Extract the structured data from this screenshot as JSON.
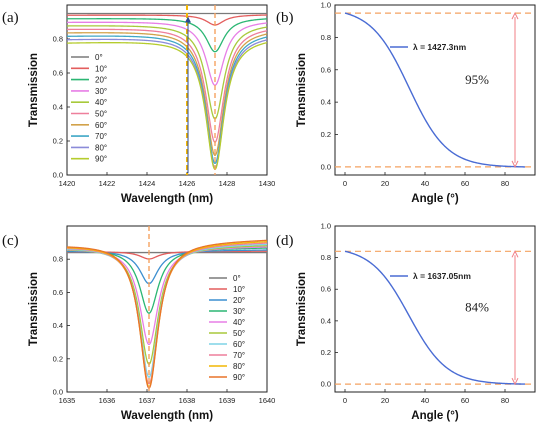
{
  "chart_data": [
    {
      "type": "line",
      "panel_label": "(a)",
      "xlabel": "Wavelength (nm)",
      "ylabel": "Transmission",
      "xlim": [
        1420,
        1430
      ],
      "ylim": [
        0,
        1.0
      ],
      "xticks": [
        1420,
        1422,
        1424,
        1426,
        1428,
        1430
      ],
      "yticks": [
        0.0,
        0.2,
        0.4,
        0.6,
        0.8
      ],
      "resonance": 1427.4,
      "width": 0.55,
      "legend_position": "left",
      "markers": [
        {
          "x": 1426.0,
          "style": "dashed",
          "color": "#f2b705"
        },
        {
          "x": 1427.4,
          "style": "dashed",
          "color": "#f4a261"
        }
      ],
      "series": [
        {
          "name": "0°",
          "color": "#7a7a7a",
          "base": 0.95,
          "min": 0.95
        },
        {
          "name": "10°",
          "color": "#e35d5d",
          "base": 0.94,
          "min": 0.88
        },
        {
          "name": "20°",
          "color": "#2bb673",
          "base": 0.92,
          "min": 0.72
        },
        {
          "name": "30°",
          "color": "#e77ee6",
          "base": 0.9,
          "min": 0.52
        },
        {
          "name": "40°",
          "color": "#a8c93b",
          "base": 0.88,
          "min": 0.32
        },
        {
          "name": "50°",
          "color": "#ee7f9b",
          "base": 0.86,
          "min": 0.18
        },
        {
          "name": "60°",
          "color": "#d2a24a",
          "base": 0.84,
          "min": 0.1
        },
        {
          "name": "70°",
          "color": "#3fa7c6",
          "base": 0.82,
          "min": 0.05
        },
        {
          "name": "80°",
          "color": "#8b8bd9",
          "base": 0.8,
          "min": 0.02
        },
        {
          "name": "90°",
          "color": "#b5cc2e",
          "base": 0.78,
          "min": 0.01
        }
      ]
    },
    {
      "type": "line",
      "panel_label": "(b)",
      "xlabel": "Angle (°)",
      "ylabel": "Transmission",
      "xlim": [
        -5,
        95
      ],
      "ylim": [
        -0.05,
        1.0
      ],
      "xticks": [
        0,
        20,
        40,
        60,
        80
      ],
      "yticks": [
        0.0,
        0.2,
        0.4,
        0.6,
        0.8,
        1.0
      ],
      "series": [
        {
          "name": "λ = 1427.3nm",
          "legend_label": "λ = 1427.3nm",
          "color": "#4a6cd4",
          "start": 0.95,
          "end": 0.0,
          "x_end": 90
        }
      ],
      "hlines": [
        0.95,
        0.0
      ],
      "arrow": {
        "x": 85,
        "from": 0.95,
        "to": 0.0
      },
      "annotation": "95%"
    },
    {
      "type": "line",
      "panel_label": "(c)",
      "xlabel": "Wavelength (nm)",
      "ylabel": "Transmission",
      "xlim": [
        1635,
        1640
      ],
      "ylim": [
        0,
        1.0
      ],
      "xticks": [
        1635,
        1636,
        1637,
        1638,
        1639,
        1640
      ],
      "yticks": [
        0.0,
        0.2,
        0.4,
        0.6,
        0.8
      ],
      "resonance": 1637.05,
      "width": 0.28,
      "legend_position": "right",
      "markers": [
        {
          "x": 1637.05,
          "style": "dashed",
          "color": "#f4a261"
        }
      ],
      "series": [
        {
          "name": "0°",
          "color": "#7a7a7a",
          "base": 0.84,
          "min": 0.84
        },
        {
          "name": "10°",
          "color": "#e35d5d",
          "base": 0.845,
          "min": 0.8
        },
        {
          "name": "20°",
          "color": "#3c8fd0",
          "base": 0.85,
          "min": 0.65
        },
        {
          "name": "30°",
          "color": "#2bb673",
          "base": 0.86,
          "min": 0.47
        },
        {
          "name": "40°",
          "color": "#e77ee6",
          "base": 0.865,
          "min": 0.28
        },
        {
          "name": "50°",
          "color": "#a8c93b",
          "base": 0.87,
          "min": 0.16
        },
        {
          "name": "60°",
          "color": "#7fd3e6",
          "base": 0.875,
          "min": 0.08
        },
        {
          "name": "70°",
          "color": "#ee7f9b",
          "base": 0.88,
          "min": 0.04
        },
        {
          "name": "80°",
          "color": "#f2b705",
          "base": 0.885,
          "min": 0.02
        },
        {
          "name": "90°",
          "color": "#e8742a",
          "base": 0.89,
          "min": 0.01
        }
      ]
    },
    {
      "type": "line",
      "panel_label": "(d)",
      "xlabel": "Angle (°)",
      "ylabel": "Transmission",
      "xlim": [
        -5,
        95
      ],
      "ylim": [
        -0.05,
        1.0
      ],
      "xticks": [
        0,
        20,
        40,
        60,
        80
      ],
      "yticks": [
        0.0,
        0.2,
        0.4,
        0.6,
        0.8,
        1.0
      ],
      "series": [
        {
          "name": "λ = 1637.05nm",
          "legend_label": "λ = 1637.05nm",
          "color": "#4a6cd4",
          "start": 0.84,
          "end": 0.0,
          "x_end": 90
        }
      ],
      "hlines": [
        0.84,
        0.0
      ],
      "arrow": {
        "x": 85,
        "from": 0.84,
        "to": 0.0
      },
      "annotation": "84%"
    }
  ]
}
